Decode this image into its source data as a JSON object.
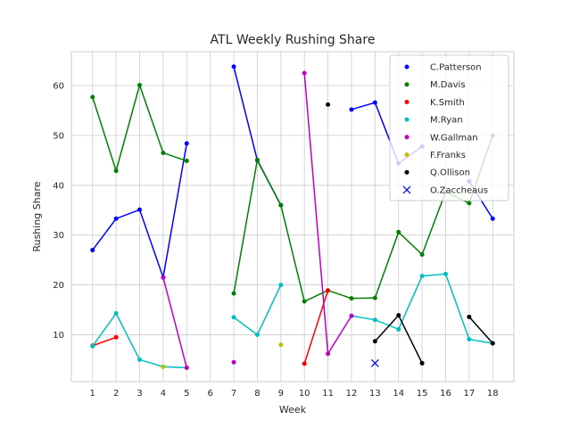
{
  "chart_data": {
    "type": "line",
    "title": "ATL Weekly Rushing Share",
    "xlabel": "Week",
    "ylabel": "Rushing Share",
    "xlim": [
      0.1,
      18.9
    ],
    "ylim": [
      0.6,
      66.8
    ],
    "xticks": [
      1,
      2,
      3,
      4,
      5,
      6,
      7,
      8,
      9,
      10,
      11,
      12,
      13,
      14,
      15,
      16,
      17,
      18
    ],
    "yticks": [
      10,
      20,
      30,
      40,
      50,
      60
    ],
    "grid": true,
    "legend_position": "top-right",
    "series": [
      {
        "name": "C.Patterson",
        "color": "#0000ff",
        "marker": "dot",
        "points": [
          [
            1,
            27
          ],
          [
            2,
            33.3
          ],
          [
            3,
            35.1
          ],
          [
            4,
            21.5
          ],
          [
            5,
            48.4
          ],
          [
            null,
            null
          ],
          [
            7,
            63.8
          ],
          [
            8,
            45
          ],
          [
            9,
            36
          ],
          [
            null,
            null
          ],
          [
            12,
            55.2
          ],
          [
            13,
            56.6
          ],
          [
            14,
            44.4
          ],
          [
            15,
            47.8
          ],
          [
            null,
            null
          ],
          [
            17,
            40.8
          ],
          [
            18,
            33.3
          ]
        ]
      },
      {
        "name": "M.Davis",
        "color": "#008000",
        "marker": "dot",
        "points": [
          [
            1,
            57.7
          ],
          [
            2,
            42.9
          ],
          [
            3,
            60.1
          ],
          [
            4,
            46.5
          ],
          [
            5,
            44.9
          ],
          [
            null,
            null
          ],
          [
            7,
            18.3
          ],
          [
            8,
            45.1
          ],
          [
            9,
            36
          ],
          [
            10,
            16.7
          ],
          [
            11,
            18.9
          ],
          [
            12,
            17.3
          ],
          [
            13,
            17.4
          ],
          [
            14,
            30.6
          ],
          [
            15,
            26.1
          ],
          [
            16,
            38.7
          ],
          [
            17,
            36.4
          ],
          [
            18,
            50
          ]
        ]
      },
      {
        "name": "K.Smith",
        "color": "#ff0000",
        "marker": "dot",
        "points": [
          [
            1,
            7.8
          ],
          [
            2,
            9.5
          ],
          [
            null,
            null
          ],
          [
            10,
            4.2
          ],
          [
            11,
            18.9
          ]
        ]
      },
      {
        "name": "M.Ryan",
        "color": "#00bfbf",
        "marker": "dot",
        "points": [
          [
            1,
            7.7
          ],
          [
            2,
            14.3
          ],
          [
            3,
            5
          ],
          [
            4,
            3.6
          ],
          [
            5,
            3.4
          ],
          [
            null,
            null
          ],
          [
            7,
            13.5
          ],
          [
            8,
            10
          ],
          [
            9,
            20
          ],
          [
            null,
            null
          ],
          [
            12,
            13.8
          ],
          [
            13,
            13
          ],
          [
            14,
            11.1
          ],
          [
            15,
            21.8
          ],
          [
            16,
            22.2
          ],
          [
            17,
            9.1
          ],
          [
            18,
            8.3
          ]
        ]
      },
      {
        "name": "W.Gallman",
        "color": "#bf00bf",
        "marker": "dot",
        "points": [
          [
            4,
            21.5
          ],
          [
            5,
            3.4
          ],
          [
            null,
            null
          ],
          [
            7,
            4.5
          ],
          [
            null,
            null
          ],
          [
            10,
            62.5
          ],
          [
            11,
            6.2
          ],
          [
            12,
            13.8
          ]
        ]
      },
      {
        "name": "F.Franks",
        "color": "#bfbf00",
        "marker": "dot",
        "points": [
          [
            4,
            3.6
          ],
          [
            null,
            null
          ],
          [
            9,
            8
          ]
        ]
      },
      {
        "name": "Q.Ollison",
        "color": "#000000",
        "marker": "dot",
        "points": [
          [
            11,
            56.2
          ],
          [
            null,
            null
          ],
          [
            13,
            8.7
          ],
          [
            14,
            13.9
          ],
          [
            15,
            4.3
          ],
          [
            null,
            null
          ],
          [
            17,
            13.6
          ],
          [
            18,
            8.3
          ]
        ]
      },
      {
        "name": "O.Zaccheaus",
        "color": "#0000ff",
        "marker": "x",
        "points": [
          [
            13,
            4.3
          ]
        ]
      }
    ]
  }
}
